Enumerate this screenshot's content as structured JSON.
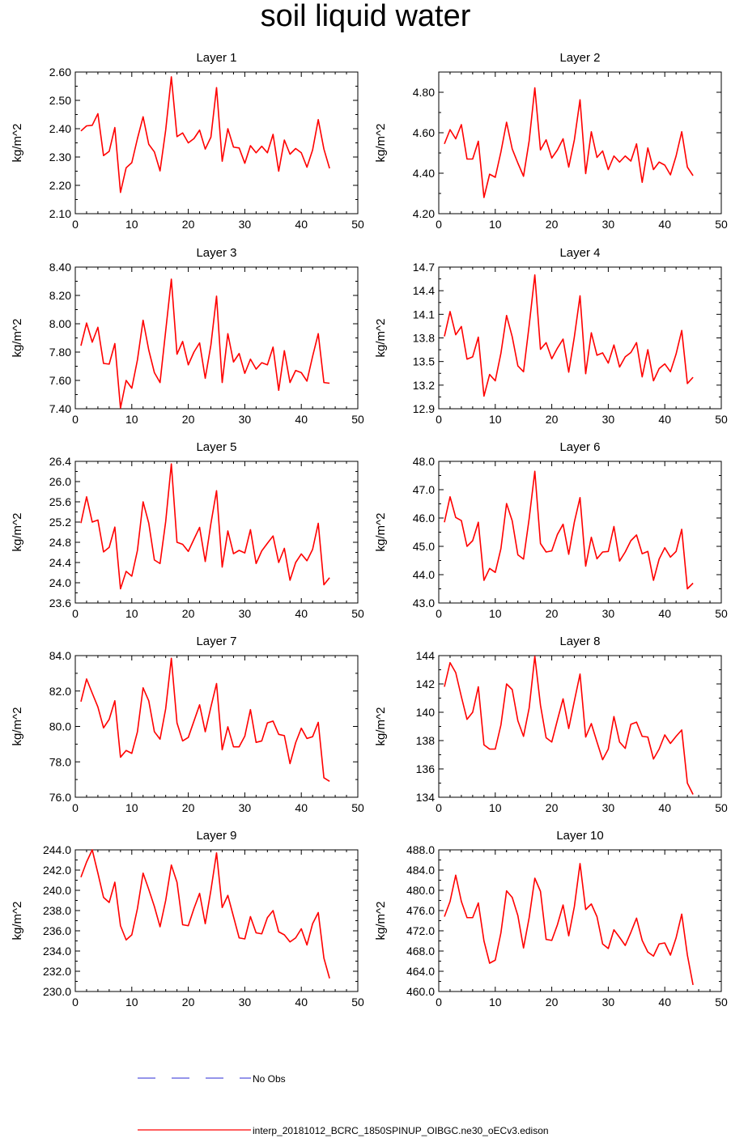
{
  "title": "soil liquid water",
  "legend": {
    "items": [
      {
        "label": "No Obs",
        "color": "#2b2bd6",
        "style": "dashed"
      },
      {
        "label": "interp_20181012_BCRC_1850SPINUP_OIBGC.ne30_oECv3.edison",
        "color": "#ff0000",
        "style": "solid"
      }
    ]
  },
  "chart_data": [
    {
      "type": "line",
      "title": "Layer 1",
      "ylabel": "kg/m^2",
      "xlim": [
        0,
        50
      ],
      "ylim": [
        2.1,
        2.6
      ],
      "xticks": [
        "0",
        "10",
        "20",
        "30",
        "40",
        "50"
      ],
      "yticks": [
        "2.10",
        "2.20",
        "2.30",
        "2.40",
        "2.50",
        "2.60"
      ],
      "color": "#ff0000",
      "values": [
        2.392,
        2.41,
        2.412,
        2.453,
        2.305,
        2.32,
        2.404,
        2.175,
        2.262,
        2.28,
        2.365,
        2.442,
        2.345,
        2.318,
        2.251,
        2.395,
        2.583,
        2.372,
        2.385,
        2.35,
        2.365,
        2.395,
        2.328,
        2.37,
        2.545,
        2.285,
        2.4,
        2.335,
        2.332,
        2.278,
        2.34,
        2.315,
        2.338,
        2.315,
        2.38,
        2.25,
        2.36,
        2.31,
        2.33,
        2.315,
        2.264,
        2.325,
        2.432,
        2.328,
        2.26
      ]
    },
    {
      "type": "line",
      "title": "Layer 2",
      "ylabel": "kg/m^2",
      "xlim": [
        0,
        50
      ],
      "ylim": [
        4.2,
        4.9
      ],
      "xticks": [
        "0",
        "10",
        "20",
        "30",
        "40",
        "50"
      ],
      "yticks": [
        "4.20",
        "4.40",
        "4.60",
        "4.80"
      ],
      "color": "#ff0000",
      "values": [
        4.545,
        4.615,
        4.57,
        4.64,
        4.47,
        4.47,
        4.558,
        4.28,
        4.395,
        4.38,
        4.505,
        4.652,
        4.52,
        4.45,
        4.385,
        4.56,
        4.822,
        4.515,
        4.565,
        4.475,
        4.515,
        4.57,
        4.43,
        4.565,
        4.763,
        4.398,
        4.605,
        4.478,
        4.51,
        4.418,
        4.485,
        4.455,
        4.485,
        4.46,
        4.545,
        4.355,
        4.525,
        4.418,
        4.455,
        4.44,
        4.392,
        4.485,
        4.605,
        4.43,
        4.388
      ]
    },
    {
      "type": "line",
      "title": "Layer 3",
      "ylabel": "kg/m^2",
      "xlim": [
        0,
        50
      ],
      "ylim": [
        7.4,
        8.4
      ],
      "xticks": [
        "0",
        "10",
        "20",
        "30",
        "40",
        "50"
      ],
      "yticks": [
        "7.40",
        "7.60",
        "7.80",
        "8.00",
        "8.20",
        "8.40"
      ],
      "color": "#ff0000",
      "values": [
        7.845,
        8.005,
        7.87,
        7.975,
        7.72,
        7.715,
        7.86,
        7.405,
        7.6,
        7.545,
        7.745,
        8.025,
        7.815,
        7.655,
        7.585,
        7.95,
        8.315,
        7.785,
        7.875,
        7.71,
        7.8,
        7.865,
        7.615,
        7.85,
        8.195,
        7.585,
        7.93,
        7.73,
        7.79,
        7.65,
        7.75,
        7.68,
        7.725,
        7.71,
        7.835,
        7.53,
        7.81,
        7.585,
        7.67,
        7.655,
        7.595,
        7.77,
        7.93,
        7.585,
        7.58
      ]
    },
    {
      "type": "line",
      "title": "Layer 4",
      "ylabel": "kg/m^2",
      "xlim": [
        0,
        50
      ],
      "ylim": [
        12.9,
        14.7
      ],
      "xticks": [
        "0",
        "10",
        "20",
        "30",
        "40",
        "50"
      ],
      "yticks": [
        "12.9",
        "13.2",
        "13.5",
        "13.8",
        "14.1",
        "14.4",
        "14.7"
      ],
      "color": "#ff0000",
      "values": [
        13.82,
        14.135,
        13.84,
        13.945,
        13.53,
        13.56,
        13.81,
        13.06,
        13.335,
        13.255,
        13.605,
        14.085,
        13.815,
        13.445,
        13.37,
        13.96,
        14.6,
        13.655,
        13.74,
        13.535,
        13.67,
        13.785,
        13.365,
        13.815,
        14.335,
        13.345,
        13.865,
        13.58,
        13.61,
        13.48,
        13.71,
        13.43,
        13.56,
        13.615,
        13.74,
        13.305,
        13.65,
        13.255,
        13.41,
        13.47,
        13.37,
        13.595,
        13.895,
        13.22,
        13.3
      ]
    },
    {
      "type": "line",
      "title": "Layer 5",
      "ylabel": "kg/m^2",
      "xlim": [
        0,
        50
      ],
      "ylim": [
        23.6,
        26.4
      ],
      "xticks": [
        "0",
        "10",
        "20",
        "30",
        "40",
        "50"
      ],
      "yticks": [
        "23.6",
        "24.0",
        "24.4",
        "24.8",
        "25.2",
        "25.6",
        "26.0",
        "26.4"
      ],
      "color": "#ff0000",
      "values": [
        25.18,
        25.7,
        25.2,
        25.24,
        24.61,
        24.7,
        25.1,
        23.88,
        24.225,
        24.13,
        24.64,
        25.6,
        25.18,
        24.45,
        24.38,
        25.21,
        26.35,
        24.8,
        24.76,
        24.62,
        24.86,
        25.095,
        24.42,
        25.17,
        25.82,
        24.31,
        25.025,
        24.575,
        24.64,
        24.59,
        25.05,
        24.38,
        24.63,
        24.78,
        24.925,
        24.4,
        24.68,
        24.05,
        24.4,
        24.57,
        24.435,
        24.66,
        25.175,
        23.96,
        24.1
      ]
    },
    {
      "type": "line",
      "title": "Layer 6",
      "ylabel": "kg/m^2",
      "xlim": [
        0,
        50
      ],
      "ylim": [
        43.0,
        48.0
      ],
      "xticks": [
        "0",
        "10",
        "20",
        "30",
        "40",
        "50"
      ],
      "yticks": [
        "43.0",
        "44.0",
        "45.0",
        "46.0",
        "47.0",
        "48.0"
      ],
      "color": "#ff0000",
      "values": [
        45.85,
        46.75,
        46.02,
        45.91,
        45.0,
        45.2,
        45.85,
        43.8,
        44.22,
        44.08,
        44.92,
        46.51,
        45.9,
        44.7,
        44.55,
        45.98,
        47.65,
        45.1,
        44.8,
        44.84,
        45.42,
        45.78,
        44.72,
        45.86,
        46.72,
        44.3,
        45.32,
        44.56,
        44.8,
        44.82,
        45.7,
        44.48,
        44.8,
        45.2,
        45.4,
        44.74,
        44.82,
        43.8,
        44.55,
        44.95,
        44.62,
        44.82,
        45.6,
        43.5,
        43.7
      ]
    },
    {
      "type": "line",
      "title": "Layer 7",
      "ylabel": "kg/m^2",
      "xlim": [
        0,
        50
      ],
      "ylim": [
        76.0,
        84.0
      ],
      "xticks": [
        "0",
        "10",
        "20",
        "30",
        "40",
        "50"
      ],
      "yticks": [
        "76.0",
        "78.0",
        "80.0",
        "82.0",
        "84.0"
      ],
      "color": "#ff0000",
      "values": [
        81.4,
        82.68,
        81.88,
        81.1,
        79.92,
        80.4,
        81.45,
        78.26,
        78.64,
        78.48,
        79.7,
        82.18,
        81.45,
        79.7,
        79.28,
        81.0,
        83.85,
        80.2,
        79.18,
        79.38,
        80.3,
        81.22,
        79.7,
        81.1,
        82.42,
        78.68,
        79.98,
        78.85,
        78.85,
        79.45,
        80.95,
        79.1,
        79.18,
        80.2,
        80.3,
        79.55,
        79.48,
        77.9,
        79.08,
        79.9,
        79.32,
        79.42,
        80.23,
        77.1,
        76.9
      ]
    },
    {
      "type": "line",
      "title": "Layer 8",
      "ylabel": "kg/m^2",
      "xlim": [
        0,
        50
      ],
      "ylim": [
        134,
        144
      ],
      "xticks": [
        "0",
        "10",
        "20",
        "30",
        "40",
        "50"
      ],
      "yticks": [
        "134",
        "136",
        "138",
        "140",
        "142",
        "144"
      ],
      "color": "#ff0000",
      "values": [
        141.8,
        143.5,
        142.8,
        141.1,
        139.5,
        140.0,
        141.8,
        137.7,
        137.4,
        137.4,
        139.1,
        142.0,
        141.6,
        139.4,
        138.3,
        140.3,
        143.95,
        140.5,
        138.2,
        137.9,
        139.45,
        140.95,
        138.85,
        140.8,
        142.7,
        138.25,
        139.2,
        137.9,
        136.65,
        137.4,
        139.7,
        137.9,
        137.45,
        139.15,
        139.3,
        138.3,
        138.25,
        136.7,
        137.4,
        138.4,
        137.8,
        138.3,
        138.75,
        135.0,
        134.2
      ]
    },
    {
      "type": "line",
      "title": "Layer 9",
      "ylabel": "kg/m^2",
      "xlim": [
        0,
        50
      ],
      "ylim": [
        230.0,
        244.0
      ],
      "xticks": [
        "0",
        "10",
        "20",
        "30",
        "40",
        "50"
      ],
      "yticks": [
        "230.0",
        "232.0",
        "234.0",
        "236.0",
        "238.0",
        "240.0",
        "242.0",
        "244.0"
      ],
      "color": "#ff0000",
      "values": [
        241.3,
        242.8,
        244.0,
        241.7,
        239.3,
        238.8,
        240.8,
        236.5,
        235.1,
        235.6,
        238.2,
        241.7,
        240.1,
        238.4,
        236.4,
        239.0,
        242.5,
        240.8,
        236.6,
        236.5,
        238.2,
        239.7,
        236.7,
        240.0,
        243.7,
        238.3,
        239.5,
        237.4,
        235.3,
        235.2,
        237.4,
        235.8,
        235.7,
        237.3,
        238.0,
        235.9,
        235.6,
        234.9,
        235.3,
        236.2,
        234.6,
        236.7,
        237.8,
        233.3,
        231.3
      ]
    },
    {
      "type": "line",
      "title": "Layer 10",
      "ylabel": "kg/m^2",
      "xlim": [
        0,
        50
      ],
      "ylim": [
        460.0,
        488.0
      ],
      "xticks": [
        "0",
        "10",
        "20",
        "30",
        "40",
        "50"
      ],
      "yticks": [
        "460.0",
        "464.0",
        "468.0",
        "472.0",
        "476.0",
        "480.0",
        "484.0",
        "488.0"
      ],
      "color": "#ff0000",
      "values": [
        474.8,
        477.8,
        483.0,
        477.8,
        474.6,
        474.6,
        477.5,
        470.0,
        465.6,
        466.2,
        471.6,
        479.9,
        478.6,
        475.0,
        468.6,
        474.6,
        482.4,
        479.8,
        470.3,
        470.1,
        473.2,
        477.1,
        471.0,
        476.8,
        485.3,
        476.2,
        477.3,
        474.8,
        469.4,
        468.5,
        472.2,
        470.7,
        469.1,
        471.7,
        474.5,
        470.1,
        467.8,
        467.0,
        469.4,
        469.6,
        467.2,
        470.6,
        475.3,
        467.2,
        461.3
      ]
    }
  ]
}
